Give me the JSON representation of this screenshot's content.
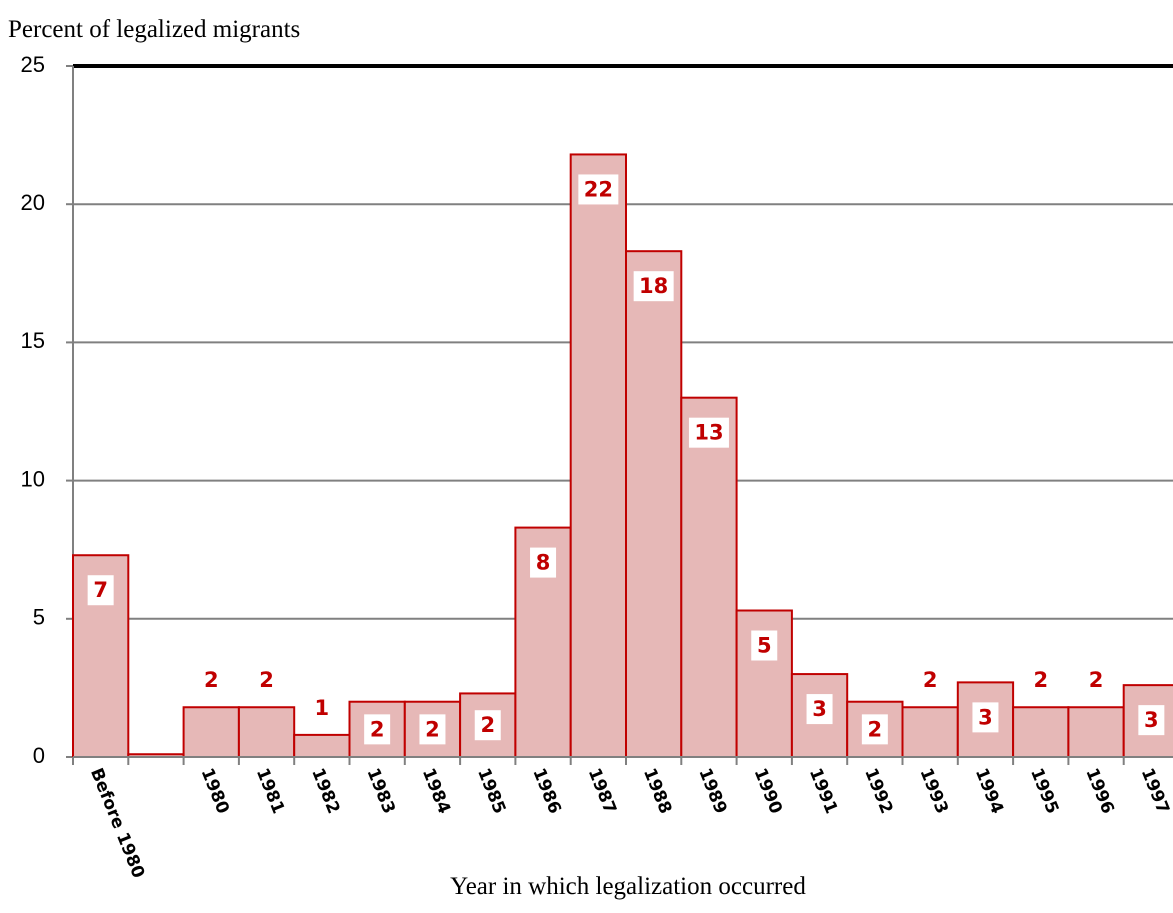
{
  "chart_data": {
    "type": "bar",
    "title": "Percent of legalized migrants",
    "x_label": "Year in which legalization occurred",
    "categories": [
      "Before 1980",
      null,
      "1980",
      "1981",
      "1982",
      "1983",
      "1984",
      "1985",
      "1986",
      "1987",
      "1988",
      "1989",
      "1990",
      "1991",
      "1992",
      "1993",
      "1994",
      "1995",
      "1996",
      "1997"
    ],
    "values": [
      7.3,
      0.1,
      1.8,
      1.8,
      0.8,
      2.0,
      2.0,
      2.3,
      8.3,
      21.8,
      18.3,
      13.0,
      5.3,
      3.0,
      2.0,
      1.8,
      2.7,
      1.8,
      1.8,
      2.6
    ],
    "value_labels": [
      "7",
      null,
      "2",
      "2",
      "1",
      "2",
      "2",
      "2",
      "8",
      "22",
      "18",
      "13",
      "5",
      "3",
      "2",
      "2",
      "3",
      "2",
      "2",
      "3"
    ],
    "color": "#e6b8b7",
    "edge_color": "#c00000",
    "ylim": [
      0,
      25
    ],
    "yticks": [
      0,
      5,
      10,
      15,
      20,
      25
    ],
    "grid": true
  }
}
